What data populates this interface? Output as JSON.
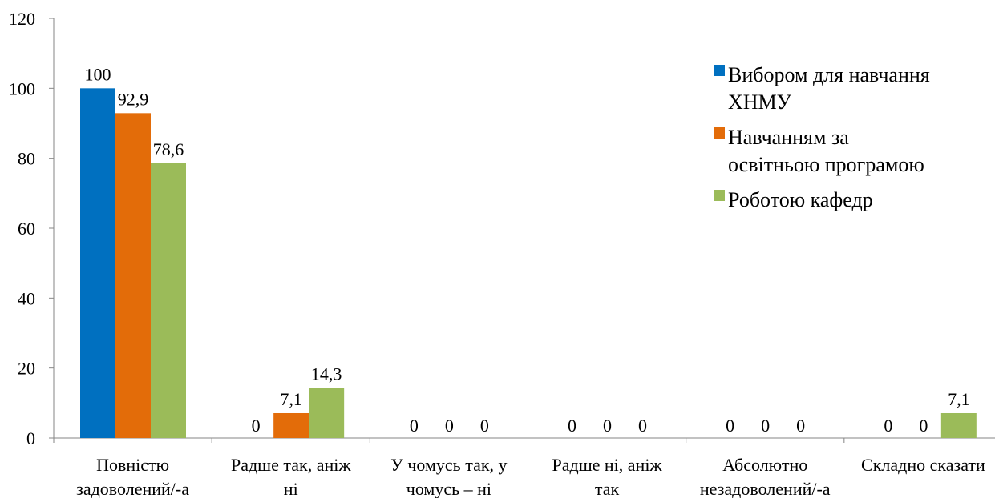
{
  "chart_data": {
    "type": "bar",
    "categories": [
      [
        "Повністю",
        "задоволений/-а"
      ],
      [
        "Радше так, аніж",
        "ні"
      ],
      [
        "У чомусь так, у",
        "чомусь – ні"
      ],
      [
        "Радше ні, аніж",
        "так"
      ],
      [
        "Абсолютно",
        "незадоволений/-а"
      ],
      [
        "Складно сказати"
      ]
    ],
    "series": [
      {
        "name": "Вибором для навчання ХНМУ",
        "legend_lines": [
          "Вибором для навчання",
          "ХНМУ"
        ],
        "color": "#0070C0",
        "values": [
          100,
          0,
          0,
          0,
          0,
          0
        ],
        "labels": [
          "100",
          "0",
          "0",
          "0",
          "0",
          "0"
        ]
      },
      {
        "name": "Навчанням за освітньою програмою",
        "legend_lines": [
          "Навчанням за",
          "освітньою програмою"
        ],
        "color": "#E36C09",
        "values": [
          92.9,
          7.1,
          0,
          0,
          0,
          0
        ],
        "labels": [
          "92,9",
          "7,1",
          "0",
          "0",
          "0",
          "0"
        ]
      },
      {
        "name": "Роботою кафедр",
        "legend_lines": [
          "Роботою кафедр"
        ],
        "color": "#9BBB59",
        "values": [
          78.6,
          14.3,
          0,
          0,
          0,
          7.1
        ],
        "labels": [
          "78,6",
          "14,3",
          "0",
          "0",
          "0",
          "7,1"
        ]
      }
    ],
    "yticks": [
      "0",
      "20",
      "40",
      "60",
      "80",
      "100",
      "120"
    ],
    "ylim": [
      0,
      120
    ],
    "legend_position": "right",
    "grid": false,
    "title": "",
    "xlabel": "",
    "ylabel": ""
  }
}
